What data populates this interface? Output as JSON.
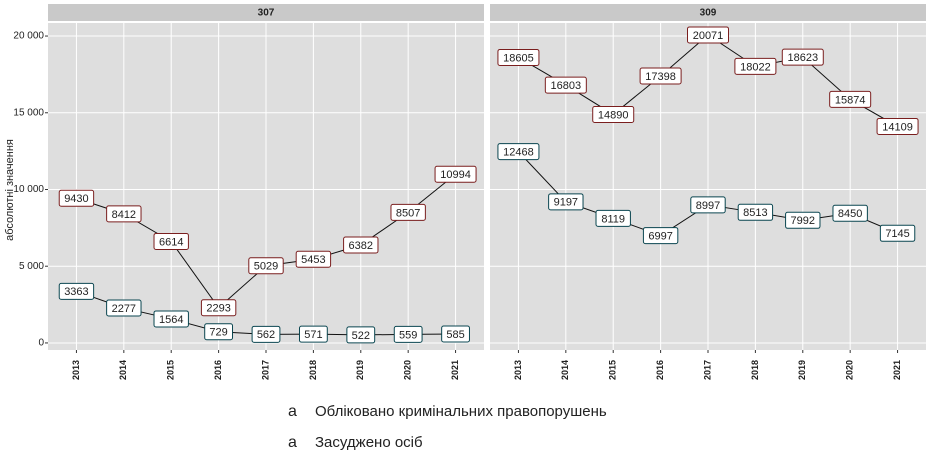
{
  "chart_data": {
    "type": "line",
    "y_label": "абсолютні значення",
    "panels": [
      "307",
      "309"
    ],
    "categories": [
      "2013",
      "2014",
      "2015",
      "2016",
      "2017",
      "2018",
      "2019",
      "2020",
      "2021"
    ],
    "ylim": [
      -460,
      20850
    ],
    "yticks": [
      {
        "value": 0,
        "label": "0"
      },
      {
        "value": 5000,
        "label": "5 000"
      },
      {
        "value": 10000,
        "label": "10 000"
      },
      {
        "value": 15000,
        "label": "15 000"
      },
      {
        "value": 20000,
        "label": "20 000"
      }
    ],
    "grid": true,
    "series": [
      {
        "name": "Обліковано кримінальних правопорушень",
        "color": "#F8766D",
        "text_color": "#7a1e1e",
        "values": [
          [
            9430,
            8412,
            6614,
            2293,
            5029,
            5453,
            6382,
            8507,
            10994
          ],
          [
            18605,
            16803,
            14890,
            17398,
            20071,
            18022,
            18623,
            15874,
            14109
          ]
        ]
      },
      {
        "name": "Засуджено осіб",
        "color": "#00BFC4",
        "text_color": "#0a4650",
        "values": [
          [
            3363,
            2277,
            1564,
            729,
            562,
            571,
            522,
            559,
            585
          ],
          [
            12468,
            9197,
            8119,
            6997,
            8997,
            8513,
            7992,
            8450,
            7145
          ]
        ]
      }
    ]
  }
}
